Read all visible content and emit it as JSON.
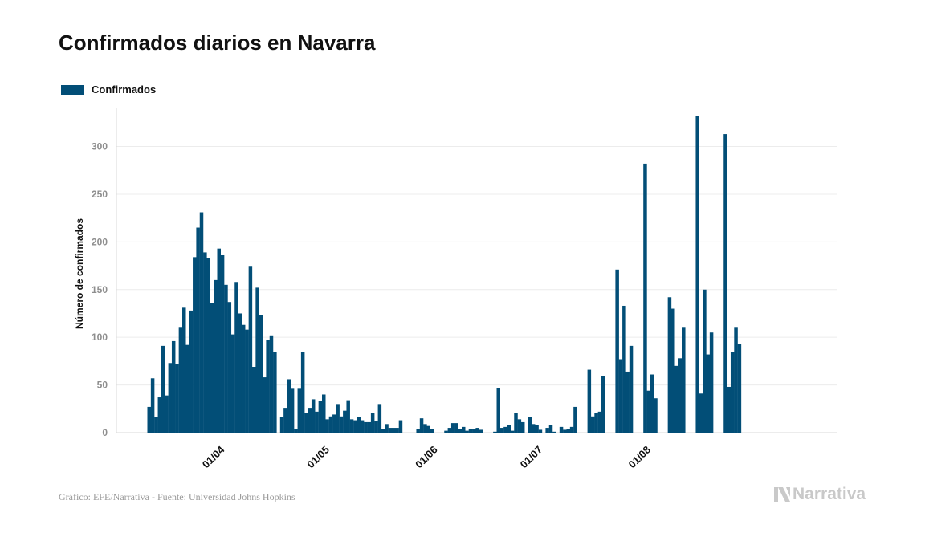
{
  "header": {
    "title": "Confirmados diarios en Navarra"
  },
  "legend": {
    "label": "Confirmados",
    "color": "#024e77"
  },
  "footer": {
    "source": "Gráfico: EFE/Narrativa - Fuente: Universidad Johns Hopkins",
    "brand": "Narrativa",
    "brand_icon": "narrativa-logo-icon"
  },
  "chart_data": {
    "type": "bar",
    "title": "Confirmados diarios en Navarra",
    "ylabel": "Número de confirmados",
    "xlabel": "",
    "ylim": [
      0,
      340
    ],
    "yticks": [
      0,
      50,
      100,
      150,
      200,
      250,
      300
    ],
    "grid": true,
    "legend_position": "top-left",
    "x_start": "2020-03-13",
    "xticks": [
      {
        "date": "2020-04-01",
        "label": "01/04"
      },
      {
        "date": "2020-05-01",
        "label": "01/05"
      },
      {
        "date": "2020-06-01",
        "label": "01/06"
      },
      {
        "date": "2020-07-01",
        "label": "01/07"
      },
      {
        "date": "2020-08-01",
        "label": "01/08"
      }
    ],
    "series": [
      {
        "name": "Confirmados",
        "color": "#024e77",
        "values": [
          27,
          57,
          16,
          37,
          91,
          39,
          73,
          96,
          72,
          110,
          131,
          92,
          128,
          184,
          215,
          231,
          189,
          183,
          136,
          160,
          193,
          186,
          155,
          137,
          103,
          158,
          125,
          113,
          108,
          174,
          69,
          152,
          123,
          58,
          97,
          102,
          85,
          0,
          16,
          26,
          56,
          46,
          4,
          46,
          85,
          21,
          26,
          35,
          22,
          33,
          40,
          14,
          17,
          19,
          30,
          17,
          23,
          34,
          14,
          13,
          16,
          13,
          11,
          11,
          21,
          12,
          30,
          4,
          9,
          5,
          5,
          5,
          13,
          0,
          0,
          0,
          0,
          4,
          15,
          9,
          7,
          4,
          0,
          0,
          0,
          2,
          5,
          10,
          10,
          4,
          6,
          2,
          4,
          4,
          5,
          3,
          0,
          0,
          0,
          1,
          47,
          5,
          6,
          8,
          2,
          21,
          14,
          11,
          0,
          16,
          9,
          8,
          3,
          0,
          5,
          8,
          1,
          0,
          6,
          3,
          4,
          6,
          27,
          0,
          0,
          0,
          66,
          17,
          21,
          22,
          59,
          0,
          0,
          0,
          171,
          77,
          133,
          64,
          91,
          0,
          0,
          0,
          282,
          44,
          61,
          36,
          0,
          0,
          0,
          142,
          130,
          70,
          78,
          110,
          0,
          0,
          0,
          332,
          41,
          150,
          82,
          105,
          0,
          0,
          0,
          313,
          48,
          85,
          110,
          93,
          0
        ]
      }
    ]
  }
}
